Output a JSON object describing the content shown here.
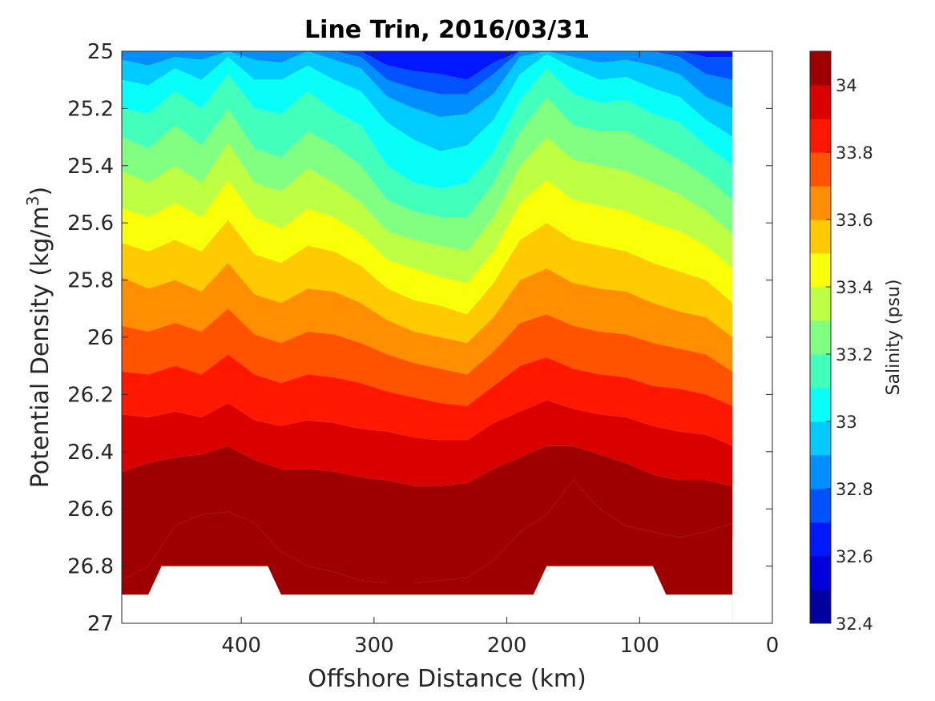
{
  "chart_data": {
    "type": "heatmap",
    "title": "Line Trin, 2016/03/31",
    "xlabel": "Offshore Distance (km)",
    "ylabel": "Potential Density (kg/m3)",
    "ylabel_main": "Potential Density (kg/m",
    "ylabel_sup": "3",
    "ylabel_close": ")",
    "xlim": [
      490,
      0
    ],
    "ylim": [
      25,
      27
    ],
    "y_reversed": true,
    "x_reversed": true,
    "xticks": [
      400,
      300,
      200,
      100,
      0
    ],
    "yticks": [
      25,
      25.2,
      25.4,
      25.6,
      25.8,
      26,
      26.2,
      26.4,
      26.6,
      26.8,
      27
    ],
    "colorbar": {
      "label": "Salinity (psu)",
      "range": [
        32.4,
        34.1
      ],
      "ticks": [
        32.4,
        32.6,
        32.8,
        33,
        33.2,
        33.4,
        33.6,
        33.8,
        34
      ],
      "levels": [
        32.4,
        32.5,
        32.6,
        32.7,
        32.8,
        32.9,
        33.0,
        33.1,
        33.2,
        33.3,
        33.4,
        33.5,
        33.6,
        33.7,
        33.8,
        33.9,
        34.0,
        34.1
      ],
      "colormap": "jet"
    },
    "contours": {
      "x": [
        490,
        470,
        450,
        430,
        410,
        390,
        370,
        350,
        330,
        310,
        290,
        270,
        250,
        230,
        210,
        190,
        170,
        150,
        130,
        110,
        90,
        70,
        50,
        30
      ],
      "isopycnal_boundaries": [
        {
          "level": 32.7,
          "y": [
            25.0,
            25.0,
            25.0,
            25.0,
            25.0,
            25.0,
            25.0,
            25.0,
            25.0,
            25.0,
            25.05,
            25.07,
            25.08,
            25.1,
            25.04,
            25.0,
            25.0,
            25.0,
            25.0,
            25.0,
            25.0,
            25.0,
            25.02,
            25.02
          ]
        },
        {
          "level": 32.8,
          "y": [
            25.0,
            25.0,
            25.0,
            25.0,
            25.0,
            25.0,
            25.0,
            25.0,
            25.0,
            25.02,
            25.1,
            25.13,
            25.15,
            25.15,
            25.08,
            25.0,
            25.0,
            25.0,
            25.0,
            25.0,
            25.0,
            25.02,
            25.08,
            25.1
          ]
        },
        {
          "level": 32.9,
          "y": [
            25.03,
            25.05,
            25.02,
            25.03,
            25.0,
            25.03,
            25.04,
            25.0,
            25.03,
            25.06,
            25.16,
            25.2,
            25.23,
            25.22,
            25.15,
            25.02,
            25.0,
            25.02,
            25.04,
            25.03,
            25.05,
            25.08,
            25.16,
            25.2
          ]
        },
        {
          "level": 33.0,
          "y": [
            25.1,
            25.12,
            25.06,
            25.1,
            25.02,
            25.1,
            25.1,
            25.05,
            25.1,
            25.14,
            25.25,
            25.31,
            25.35,
            25.33,
            25.24,
            25.08,
            25.01,
            25.06,
            25.1,
            25.09,
            25.13,
            25.16,
            25.24,
            25.3
          ]
        },
        {
          "level": 33.1,
          "y": [
            25.2,
            25.22,
            25.14,
            25.2,
            25.08,
            25.2,
            25.22,
            25.14,
            25.21,
            25.26,
            25.4,
            25.46,
            25.48,
            25.46,
            25.35,
            25.17,
            25.06,
            25.15,
            25.18,
            25.17,
            25.22,
            25.25,
            25.33,
            25.4
          ]
        },
        {
          "level": 33.2,
          "y": [
            25.3,
            25.34,
            25.26,
            25.33,
            25.2,
            25.34,
            25.37,
            25.28,
            25.33,
            25.4,
            25.52,
            25.56,
            25.58,
            25.58,
            25.46,
            25.28,
            25.16,
            25.26,
            25.28,
            25.28,
            25.33,
            25.38,
            25.44,
            25.52
          ]
        },
        {
          "level": 33.3,
          "y": [
            25.42,
            25.46,
            25.4,
            25.46,
            25.32,
            25.46,
            25.49,
            25.41,
            25.46,
            25.53,
            25.63,
            25.66,
            25.68,
            25.7,
            25.58,
            25.4,
            25.3,
            25.38,
            25.4,
            25.42,
            25.46,
            25.5,
            25.56,
            25.64
          ]
        },
        {
          "level": 33.4,
          "y": [
            25.55,
            25.58,
            25.53,
            25.58,
            25.45,
            25.58,
            25.62,
            25.55,
            25.58,
            25.64,
            25.73,
            25.76,
            25.79,
            25.81,
            25.7,
            25.53,
            25.45,
            25.52,
            25.54,
            25.56,
            25.6,
            25.63,
            25.68,
            25.76
          ]
        },
        {
          "level": 33.5,
          "y": [
            25.67,
            25.7,
            25.66,
            25.7,
            25.59,
            25.71,
            25.74,
            25.68,
            25.7,
            25.75,
            25.83,
            25.87,
            25.89,
            25.92,
            25.81,
            25.66,
            25.6,
            25.66,
            25.68,
            25.7,
            25.74,
            25.77,
            25.8,
            25.88
          ]
        },
        {
          "level": 33.6,
          "y": [
            25.79,
            25.83,
            25.8,
            25.84,
            25.74,
            25.85,
            25.88,
            25.83,
            25.84,
            25.88,
            25.94,
            25.98,
            26.0,
            26.02,
            25.93,
            25.8,
            25.76,
            25.81,
            25.83,
            25.84,
            25.88,
            25.91,
            25.93,
            26.0
          ]
        },
        {
          "level": 33.7,
          "y": [
            25.96,
            25.98,
            25.95,
            25.98,
            25.9,
            25.99,
            26.02,
            25.98,
            25.99,
            26.02,
            26.06,
            26.09,
            26.11,
            26.13,
            26.05,
            25.95,
            25.92,
            25.96,
            25.98,
            25.99,
            26.02,
            26.04,
            26.06,
            26.12
          ]
        },
        {
          "level": 33.8,
          "y": [
            26.12,
            26.13,
            26.1,
            26.13,
            26.06,
            26.13,
            26.16,
            26.13,
            26.14,
            26.16,
            26.19,
            26.21,
            26.23,
            26.24,
            26.17,
            26.1,
            26.07,
            26.11,
            26.13,
            26.14,
            26.17,
            26.18,
            26.2,
            26.24
          ]
        },
        {
          "level": 33.9,
          "y": [
            26.27,
            26.28,
            26.26,
            26.28,
            26.23,
            26.29,
            26.31,
            26.29,
            26.3,
            26.32,
            26.33,
            26.35,
            26.36,
            26.36,
            26.3,
            26.26,
            26.22,
            26.25,
            26.27,
            26.28,
            26.31,
            26.33,
            26.34,
            26.38
          ]
        },
        {
          "level": 34.0,
          "y": [
            26.47,
            26.44,
            26.42,
            26.41,
            26.38,
            26.43,
            26.46,
            26.46,
            26.47,
            26.49,
            26.5,
            26.52,
            26.52,
            26.51,
            26.46,
            26.42,
            26.38,
            26.38,
            26.41,
            26.44,
            26.48,
            26.5,
            26.5,
            26.52
          ]
        },
        {
          "level": 34.1,
          "y": [
            26.85,
            26.8,
            26.66,
            26.62,
            26.61,
            26.65,
            26.75,
            26.8,
            26.82,
            26.85,
            26.86,
            26.86,
            26.85,
            26.84,
            26.78,
            26.68,
            26.62,
            26.5,
            26.6,
            26.66,
            26.68,
            26.7,
            26.68,
            26.65
          ]
        }
      ],
      "valid_bottom": {
        "x": [
          490,
          480,
          470,
          460,
          380,
          370,
          180,
          170,
          90,
          80,
          30
        ],
        "y": [
          26.9,
          26.9,
          26.9,
          26.8,
          26.8,
          26.9,
          26.9,
          26.8,
          26.8,
          26.9,
          26.9
        ]
      },
      "valid_right": {
        "y": [
          25.0,
          25.2,
          25.3,
          26.6,
          26.7
        ],
        "x": [
          10,
          10,
          20,
          20,
          30
        ]
      }
    }
  }
}
